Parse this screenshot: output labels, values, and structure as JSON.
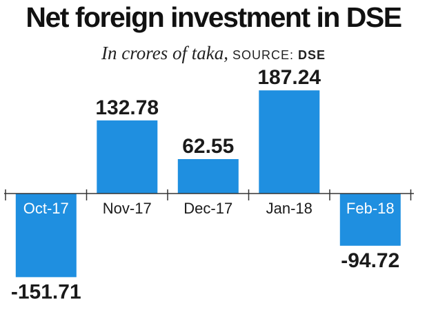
{
  "header": {
    "title": "Net foreign investment in DSE",
    "subtitle_italic": "In crores of taka,",
    "source_prefix": "SOURCE:",
    "source_name": "DSE"
  },
  "colors": {
    "bar": "#1f8fe0",
    "axis": "#333333",
    "text": "#1a1a1a"
  },
  "chart_data": {
    "type": "bar",
    "title": "Net foreign investment in DSE",
    "subtitle": "In crores of taka, SOURCE: DSE",
    "xlabel": "",
    "ylabel": "",
    "categories": [
      "Oct-17",
      "Nov-17",
      "Dec-17",
      "Jan-18",
      "Feb-18"
    ],
    "values": [
      -151.71,
      132.78,
      62.55,
      187.24,
      -94.72
    ],
    "value_labels": [
      "-151.71",
      "132.78",
      "62.55",
      "187.24",
      "-94.72"
    ],
    "ylim": [
      -151.71,
      187.24
    ],
    "grid": false,
    "legend": "none"
  }
}
